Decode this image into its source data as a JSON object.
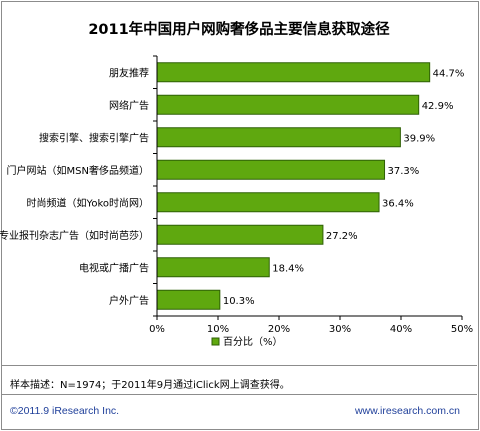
{
  "chart_data": {
    "type": "bar",
    "orientation": "horizontal",
    "title": "2011年中国用户网购奢侈品主要信息获取途径",
    "categories": [
      "朋友推荐",
      "网络广告",
      "搜索引擎、搜索引擎广告",
      "门户网站（如MSN奢侈品频道）",
      "时尚频道（如Yoko时尚网）",
      "专业报刊杂志广告（如时尚芭莎）",
      "电视或广播广告",
      "户外广告"
    ],
    "values": [
      44.7,
      42.9,
      39.9,
      37.3,
      36.4,
      27.2,
      18.4,
      10.3
    ],
    "value_labels": [
      "44.7%",
      "42.9%",
      "39.9%",
      "37.3%",
      "36.4%",
      "27.2%",
      "18.4%",
      "10.3%"
    ],
    "xlim": [
      0,
      50
    ],
    "x_ticks": [
      "0%",
      "10%",
      "20%",
      "30%",
      "40%",
      "50%"
    ],
    "x_tick_values": [
      0,
      10,
      20,
      30,
      40,
      50
    ],
    "grid": false,
    "legend_placement": "bottom",
    "series": [
      {
        "name": "百分比（%）",
        "values": [
          44.7,
          42.9,
          39.9,
          37.3,
          36.4,
          27.2,
          18.4,
          10.3
        ]
      }
    ],
    "bar_color": "#5fa80f",
    "bar_edge_color": "#2f6006"
  },
  "footer": {
    "note": "样本描述：N=1974；于2011年9月通过iClick网上调查获得。",
    "copyright": "©2011.9 iResearch Inc.",
    "website": "www.iresearch.com.cn"
  }
}
